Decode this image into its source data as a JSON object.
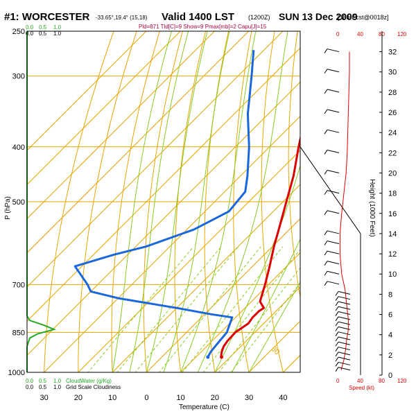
{
  "header": {
    "station": "#1: WORCESTER",
    "coords": "-33.65°,19.4° (15,18)",
    "valid": "Valid 1400 LST",
    "utc": "(1200Z)",
    "date": "SUN 13 Dec 2009",
    "forecast": "[18hrFcst@0018z]",
    "indices": "Pld=871 Tld[C]=9 Show=9 Pmax[mb]=2 Capu[J]=15"
  },
  "colors": {
    "temperature": "#dd0000",
    "dewpoint": "#1a66dd",
    "isotherm_grid": "#e6a500",
    "dry_adiabat": "#e6a500",
    "moist_adiabat": "#88cc22",
    "mixing_ratio": "#88cc22",
    "cloud_water": "#22aa22",
    "wind_speed": "#dd0000"
  },
  "cloud_scale": {
    "top_green": [
      "0.0",
      "0.5",
      "1.0"
    ],
    "top_black": [
      "0.0",
      "0.5",
      "1.0"
    ],
    "bottom_green": [
      "0.0",
      "0.5",
      "1.0"
    ],
    "bottom_green_label": "CloudWater (g/Kg)",
    "bottom_black": [
      "0.0",
      "0.5",
      "1.0"
    ],
    "bottom_black_label": "Grid Scale Cloudiness"
  },
  "speed_scale": {
    "top": [
      "0",
      "40",
      "80",
      "120"
    ],
    "bottom": [
      "0",
      "40",
      "80",
      "120"
    ],
    "label": "Speed (kt)"
  },
  "chart_data": {
    "type": "line",
    "xlabel": "Temperature (C)",
    "ylabel": "P (hPa)",
    "y2label": "Height (1000 Feet)",
    "xlim": [
      -35,
      45
    ],
    "ylim": [
      1000,
      250
    ],
    "yscale": "log",
    "x_tick_labels": [
      "30",
      "20",
      "10",
      "0",
      "10",
      "20",
      "30",
      "40"
    ],
    "x_ticks": [
      -30,
      -20,
      -10,
      0,
      10,
      20,
      30,
      40
    ],
    "pressure_ticks": [
      250,
      300,
      400,
      500,
      700,
      850,
      1000
    ],
    "height_ticks": [
      0,
      2,
      4,
      6,
      8,
      10,
      12,
      14,
      16,
      18,
      20,
      22,
      24,
      26,
      28,
      30,
      32
    ],
    "skew_angle_deg": 45,
    "isotherms_c": [
      -100,
      -90,
      -80,
      -70,
      -60,
      -50,
      -40,
      -30,
      -20,
      -10,
      0,
      10,
      20,
      30,
      40
    ],
    "isotherm_labels": [
      {
        "t": -10,
        "p": 290,
        "text": "-10"
      },
      {
        "t": 0,
        "p": 400,
        "text": "0"
      },
      {
        "t": 10,
        "p": 500,
        "text": "10"
      },
      {
        "t": 20,
        "p": 690,
        "text": "20"
      },
      {
        "t": 30,
        "p": 900,
        "text": "30"
      }
    ],
    "dry_adiabats_c": [
      -30,
      -20,
      -10,
      0,
      10,
      20,
      30,
      40,
      50,
      60,
      70,
      80,
      90
    ],
    "moist_adiabats_c": [
      -10,
      -5,
      0,
      5,
      10,
      15,
      20,
      25,
      30
    ],
    "mixing_ratios_gkg": [
      1,
      2,
      3,
      5,
      8,
      12,
      16,
      20
    ],
    "series": [
      {
        "name": "temperature",
        "points": [
          {
            "p": 940,
            "t": 17.5
          },
          {
            "p": 935,
            "t": 17
          },
          {
            "p": 920,
            "t": 16
          },
          {
            "p": 900,
            "t": 15
          },
          {
            "p": 880,
            "t": 14.5
          },
          {
            "p": 850,
            "t": 14.3
          },
          {
            "p": 820,
            "t": 15.5
          },
          {
            "p": 800,
            "t": 15
          },
          {
            "p": 780,
            "t": 15
          },
          {
            "p": 770,
            "t": 15.5
          },
          {
            "p": 750,
            "t": 12.5
          },
          {
            "p": 700,
            "t": 9
          },
          {
            "p": 650,
            "t": 5
          },
          {
            "p": 600,
            "t": 0.5
          },
          {
            "p": 550,
            "t": -4
          },
          {
            "p": 500,
            "t": -9
          },
          {
            "p": 450,
            "t": -14.5
          },
          {
            "p": 400,
            "t": -21.5
          },
          {
            "p": 350,
            "t": -29
          },
          {
            "p": 300,
            "t": -38
          },
          {
            "p": 270,
            "t": -43
          }
        ]
      },
      {
        "name": "dewpoint",
        "points": [
          {
            "p": 940,
            "t": 13.5
          },
          {
            "p": 920,
            "t": 12.8
          },
          {
            "p": 900,
            "t": 12.5
          },
          {
            "p": 850,
            "t": 11.8
          },
          {
            "p": 800,
            "t": 9
          },
          {
            "p": 790,
            "t": 2
          },
          {
            "p": 770,
            "t": -10
          },
          {
            "p": 740,
            "t": -30
          },
          {
            "p": 720,
            "t": -40
          },
          {
            "p": 700,
            "t": -43
          },
          {
            "p": 650,
            "t": -52
          },
          {
            "p": 620,
            "t": -44
          },
          {
            "p": 600,
            "t": -37
          },
          {
            "p": 560,
            "t": -28
          },
          {
            "p": 520,
            "t": -23
          },
          {
            "p": 480,
            "t": -24
          },
          {
            "p": 450,
            "t": -28
          },
          {
            "p": 400,
            "t": -36
          },
          {
            "p": 350,
            "t": -46
          },
          {
            "p": 300,
            "t": -56
          },
          {
            "p": 270,
            "t": -63
          }
        ]
      }
    ],
    "wind_profile": [
      {
        "z": 0.5,
        "speed_kt": 5
      },
      {
        "z": 1.5,
        "speed_kt": 10
      },
      {
        "z": 2.5,
        "speed_kt": 13
      },
      {
        "z": 3.5,
        "speed_kt": 15
      },
      {
        "z": 4.5,
        "speed_kt": 18
      },
      {
        "z": 5.5,
        "speed_kt": 18
      },
      {
        "z": 6.5,
        "speed_kt": 16
      },
      {
        "z": 7.5,
        "speed_kt": 14
      },
      {
        "z": 8.5,
        "speed_kt": 12
      },
      {
        "z": 10,
        "speed_kt": 6
      },
      {
        "z": 12,
        "speed_kt": 3
      },
      {
        "z": 14,
        "speed_kt": 3
      },
      {
        "z": 16,
        "speed_kt": 6
      },
      {
        "z": 18,
        "speed_kt": 10
      },
      {
        "z": 20,
        "speed_kt": 14
      },
      {
        "z": 22,
        "speed_kt": 16
      },
      {
        "z": 24,
        "speed_kt": 17
      },
      {
        "z": 26,
        "speed_kt": 18
      },
      {
        "z": 28,
        "speed_kt": 19
      },
      {
        "z": 30,
        "speed_kt": 20
      },
      {
        "z": 32,
        "speed_kt": 20
      }
    ],
    "wind_barbs_z": [
      0.5,
      1,
      1.5,
      2,
      2.5,
      3,
      3.5,
      4,
      4.5,
      5,
      5.5,
      6,
      6.5,
      7,
      7.5,
      8,
      9,
      10,
      11,
      12,
      13,
      14,
      16,
      18,
      20,
      22,
      24,
      26,
      28,
      30,
      32
    ],
    "cloud_water_profile": [
      {
        "p": 1000,
        "v": 0
      },
      {
        "p": 900,
        "v": 0
      },
      {
        "p": 870,
        "v": 0.05
      },
      {
        "p": 855,
        "v": 0.2
      },
      {
        "p": 840,
        "v": 0.5
      },
      {
        "p": 825,
        "v": 0.3
      },
      {
        "p": 810,
        "v": 0.05
      },
      {
        "p": 795,
        "v": 0
      },
      {
        "p": 250,
        "v": 0
      }
    ]
  }
}
